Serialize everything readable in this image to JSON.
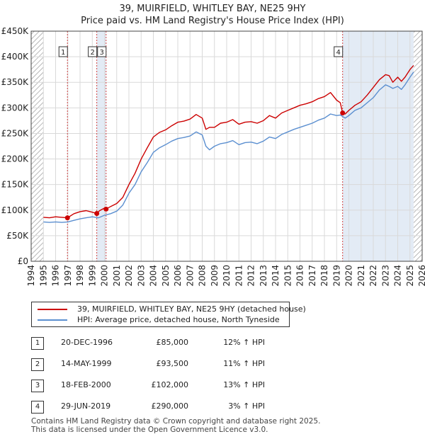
{
  "title_line1": "39, MUIRFIELD, WHITLEY BAY, NE25 9HY",
  "title_line2": "Price paid vs. HM Land Registry's House Price Index (HPI)",
  "colors": {
    "red": "#cc0000",
    "blue": "#5b8fd0",
    "shade": "#dce6f2",
    "hatch": "#9a9a9a",
    "grid": "#d9d9d9",
    "marker_line": "#d04040"
  },
  "chart_data": {
    "type": "line",
    "title": "39, MUIRFIELD, WHITLEY BAY, NE25 9HY - Price paid vs. HM Land Registry's House Price Index (HPI)",
    "xlabel": "",
    "ylabel": "",
    "xlim": [
      1994,
      2026
    ],
    "ylim": [
      0,
      450000
    ],
    "y_ticks": [
      0,
      50000,
      100000,
      150000,
      200000,
      250000,
      300000,
      350000,
      400000,
      450000
    ],
    "y_tick_labels": [
      "£0",
      "£50K",
      "£100K",
      "£150K",
      "£200K",
      "£250K",
      "£300K",
      "£350K",
      "£400K",
      "£450K"
    ],
    "x_ticks": [
      1994,
      1995,
      1996,
      1997,
      1998,
      1999,
      2000,
      2001,
      2002,
      2003,
      2004,
      2005,
      2006,
      2007,
      2008,
      2009,
      2010,
      2011,
      2012,
      2013,
      2014,
      2015,
      2016,
      2017,
      2018,
      2019,
      2020,
      2021,
      2022,
      2023,
      2024,
      2025,
      2026
    ],
    "data_range": [
      1995,
      2025.3
    ],
    "series": [
      {
        "name": "39, MUIRFIELD, WHITLEY BAY, NE25 9HY (detached house)",
        "color": "#cc0000",
        "x": [
          1995.0,
          1995.5,
          1996.0,
          1996.5,
          1996.97,
          1997.5,
          1998.0,
          1998.5,
          1999.0,
          1999.37,
          1999.6,
          2000.0,
          2000.13,
          2000.5,
          2001.0,
          2001.5,
          2002.0,
          2002.5,
          2003.0,
          2003.5,
          2004.0,
          2004.5,
          2005.0,
          2005.5,
          2006.0,
          2006.5,
          2007.0,
          2007.5,
          2008.0,
          2008.3,
          2008.6,
          2009.0,
          2009.5,
          2010.0,
          2010.5,
          2011.0,
          2011.5,
          2012.0,
          2012.5,
          2013.0,
          2013.5,
          2014.0,
          2014.5,
          2015.0,
          2015.5,
          2016.0,
          2016.5,
          2017.0,
          2017.5,
          2018.0,
          2018.5,
          2019.0,
          2019.3,
          2019.49,
          2019.7,
          2020.0,
          2020.5,
          2021.0,
          2021.5,
          2022.0,
          2022.5,
          2023.0,
          2023.3,
          2023.6,
          2024.0,
          2024.3,
          2024.6,
          2025.0,
          2025.3
        ],
        "y": [
          86000,
          85000,
          87000,
          86000,
          85000,
          93000,
          97000,
          99000,
          96000,
          93500,
          99000,
          104000,
          102000,
          107000,
          113000,
          125000,
          150000,
          172000,
          200000,
          222000,
          243000,
          252000,
          257000,
          265000,
          272000,
          274000,
          278000,
          287000,
          280000,
          258000,
          262000,
          262000,
          270000,
          272000,
          277000,
          268000,
          272000,
          273000,
          270000,
          275000,
          285000,
          280000,
          290000,
          295000,
          300000,
          305000,
          308000,
          312000,
          318000,
          322000,
          330000,
          315000,
          310000,
          290000,
          288000,
          295000,
          305000,
          312000,
          325000,
          340000,
          355000,
          365000,
          363000,
          350000,
          360000,
          352000,
          360000,
          375000,
          383000
        ]
      },
      {
        "name": "HPI: Average price, detached house, North Tyneside",
        "color": "#5b8fd0",
        "x": [
          1995.0,
          1995.5,
          1996.0,
          1996.5,
          1997.0,
          1997.5,
          1998.0,
          1998.5,
          1999.0,
          1999.5,
          2000.0,
          2000.5,
          2001.0,
          2001.5,
          2002.0,
          2002.5,
          2003.0,
          2003.5,
          2004.0,
          2004.5,
          2005.0,
          2005.5,
          2006.0,
          2006.5,
          2007.0,
          2007.5,
          2008.0,
          2008.3,
          2008.6,
          2009.0,
          2009.5,
          2010.0,
          2010.5,
          2011.0,
          2011.5,
          2012.0,
          2012.5,
          2013.0,
          2013.5,
          2014.0,
          2014.5,
          2015.0,
          2015.5,
          2016.0,
          2016.5,
          2017.0,
          2017.5,
          2018.0,
          2018.5,
          2019.0,
          2019.3,
          2019.5,
          2019.7,
          2020.0,
          2020.5,
          2021.0,
          2021.5,
          2022.0,
          2022.5,
          2023.0,
          2023.3,
          2023.6,
          2024.0,
          2024.3,
          2024.6,
          2025.0,
          2025.3
        ],
        "y": [
          77000,
          76000,
          77000,
          76000,
          77000,
          80000,
          83000,
          85000,
          87000,
          85000,
          90000,
          93000,
          98000,
          110000,
          133000,
          150000,
          175000,
          193000,
          213000,
          222000,
          228000,
          235000,
          240000,
          242000,
          245000,
          253000,
          247000,
          225000,
          218000,
          225000,
          230000,
          232000,
          236000,
          228000,
          232000,
          233000,
          230000,
          235000,
          243000,
          240000,
          248000,
          253000,
          258000,
          262000,
          266000,
          270000,
          276000,
          280000,
          288000,
          285000,
          286000,
          283000,
          280000,
          285000,
          295000,
          300000,
          310000,
          320000,
          335000,
          345000,
          342000,
          338000,
          342000,
          336000,
          345000,
          360000,
          370000
        ]
      }
    ],
    "sales": [
      {
        "id": "1",
        "x": 1996.97,
        "y": 85000
      },
      {
        "id": "2",
        "x": 1999.37,
        "y": 93500
      },
      {
        "id": "3",
        "x": 2000.13,
        "y": 102000
      },
      {
        "id": "4",
        "x": 2019.49,
        "y": 290000
      }
    ]
  },
  "legend": {
    "red_label": "39, MUIRFIELD, WHITLEY BAY, NE25 9HY (detached house)",
    "blue_label": "HPI: Average price, detached house, North Tyneside"
  },
  "transactions": [
    {
      "num": "1",
      "date": "20-DEC-1996",
      "price": "£85,000",
      "hpi": "12% ↑ HPI"
    },
    {
      "num": "2",
      "date": "14-MAY-1999",
      "price": "£93,500",
      "hpi": "11% ↑ HPI"
    },
    {
      "num": "3",
      "date": "18-FEB-2000",
      "price": "£102,000",
      "hpi": "13% ↑ HPI"
    },
    {
      "num": "4",
      "date": "29-JUN-2019",
      "price": "£290,000",
      "hpi": "3% ↑ HPI"
    }
  ],
  "footer": {
    "line1": "Contains HM Land Registry data © Crown copyright and database right 2025.",
    "line2": "This data is licensed under the Open Government Licence v3.0."
  }
}
